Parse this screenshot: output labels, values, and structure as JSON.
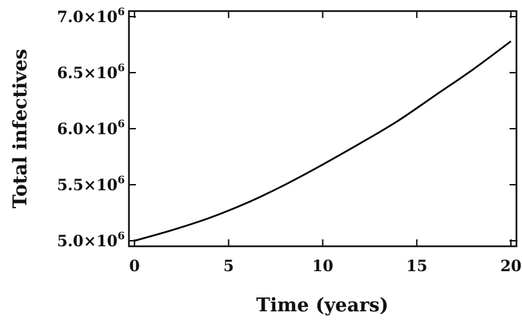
{
  "chart_data": {
    "type": "line",
    "title": "",
    "xlabel": "Time (years)",
    "ylabel": "Total infectives",
    "xlim": [
      0,
      20
    ],
    "ylim": [
      5000000,
      7000000
    ],
    "x_ticks": [
      0,
      5,
      10,
      15,
      20
    ],
    "x_tick_labels": [
      "0",
      "5",
      "10",
      "15",
      "20"
    ],
    "y_ticks": [
      5000000,
      5500000,
      6000000,
      6500000,
      7000000
    ],
    "y_tick_labels": [
      {
        "mantissa": "5.0",
        "exponent": "6"
      },
      {
        "mantissa": "5.5",
        "exponent": "6"
      },
      {
        "mantissa": "6.0",
        "exponent": "6"
      },
      {
        "mantissa": "6.5",
        "exponent": "6"
      },
      {
        "mantissa": "7.0",
        "exponent": "6"
      }
    ],
    "grid": false,
    "series": [
      {
        "color": "#000000",
        "x": [
          0,
          2,
          4,
          6,
          8,
          10,
          12,
          14,
          16,
          18,
          20
        ],
        "y": [
          5000000,
          5095000,
          5205000,
          5340000,
          5500000,
          5680000,
          5870000,
          6070000,
          6300000,
          6530000,
          6780000
        ]
      }
    ]
  }
}
